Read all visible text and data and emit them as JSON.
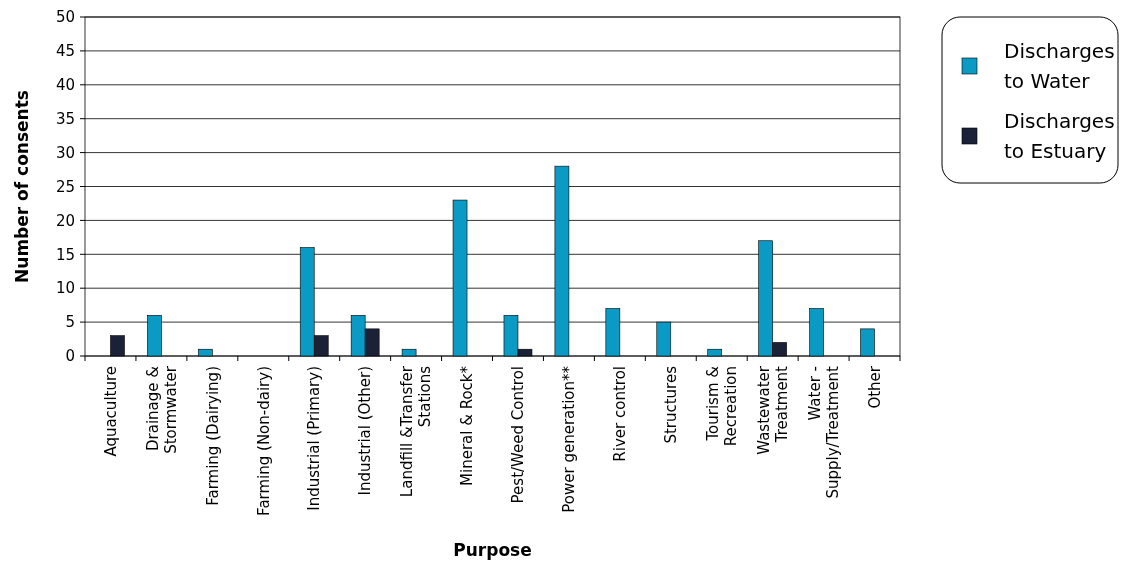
{
  "chart_data": {
    "type": "bar",
    "xlabel": "Purpose",
    "ylabel": "Number of consents",
    "categories": [
      "Aquaculture",
      "Drainage &\nStormwater",
      "Farming (Dairying)",
      "Farming (Non-dairy)",
      "Industrial (Primary)",
      "Industrial (Other)",
      "Landfill &Transfer\nStations",
      "Mineral & Rock*",
      "Pest/Weed Control",
      "Power generation**",
      "River control",
      "Structures",
      "Tourism &\nRecreation",
      "Wastewater\nTreatment",
      "Water -\nSupply/Treatment",
      "Other"
    ],
    "series": [
      {
        "name": "Discharges to Water",
        "color": "#0a9ac4",
        "values": [
          0,
          6,
          1,
          0,
          16,
          6,
          1,
          23,
          6,
          28,
          7,
          5,
          1,
          17,
          7,
          4
        ]
      },
      {
        "name": "Discharges to Estuary",
        "color": "#1b2238",
        "values": [
          3,
          0,
          0,
          0,
          3,
          4,
          0,
          0,
          1,
          0,
          0,
          0,
          0,
          2,
          0,
          0
        ]
      }
    ],
    "ylim": [
      0,
      50
    ],
    "yticks": [
      0,
      5,
      10,
      15,
      20,
      25,
      30,
      35,
      40,
      45,
      50
    ],
    "grid": "y",
    "legend": "right"
  }
}
